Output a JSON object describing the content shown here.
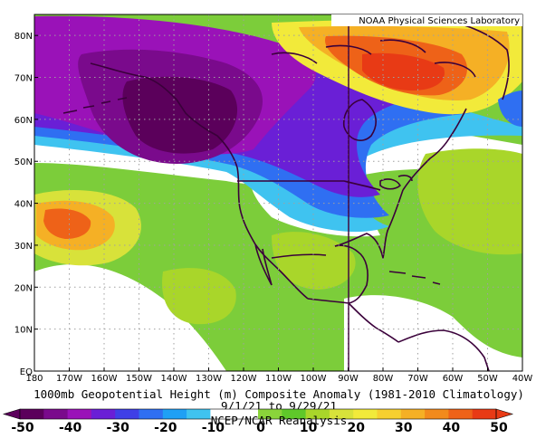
{
  "credit": "NOAA Physical Sciences Laboratory",
  "title": "1000mb Geopotential Height (m) Composite Anomaly (1981-2010 Climatology)",
  "date_range": "9/1/21 to 9/29/21",
  "source": "NCEP/NCAR Reanalysis",
  "x_ticks": [
    "180",
    "170W",
    "160W",
    "150W",
    "140W",
    "130W",
    "120W",
    "110W",
    "100W",
    "90W",
    "80W",
    "70W",
    "60W",
    "50W",
    "40W"
  ],
  "y_ticks": [
    "80N",
    "70N",
    "60N",
    "50N",
    "40N",
    "30N",
    "20N",
    "10N",
    "EQ"
  ],
  "colorbar": {
    "labels": [
      "-50",
      "-40",
      "-30",
      "-20",
      "-10",
      "0",
      "10",
      "20",
      "30",
      "40",
      "50"
    ],
    "colors": [
      "#5b005b",
      "#7a0a8c",
      "#9a12b8",
      "#6a1fd6",
      "#3f3fe6",
      "#2f6ff2",
      "#1fa0f5",
      "#3fc3f0",
      "#ffffff",
      "#ffffff",
      "#8ad43a",
      "#5fc82a",
      "#a9d62a",
      "#d8e23a",
      "#f2ea3a",
      "#f7d030",
      "#f5b025",
      "#f28a1c",
      "#ee6218",
      "#e83a15"
    ]
  },
  "map": {
    "lon_range": [
      -180,
      -40
    ],
    "lat_range": [
      0,
      85
    ],
    "bg_color": "#7ccd3a",
    "features": [
      {
        "name": "north-pacific-trough",
        "lon": -138,
        "lat": 58,
        "value": -55
      },
      {
        "name": "arctic-negative-band",
        "lon": -165,
        "lat": 78,
        "value": -35
      },
      {
        "name": "great-lakes-low",
        "lon": -88,
        "lat": 46,
        "value": -18
      },
      {
        "name": "labrador-high",
        "lon": -70,
        "lat": 67,
        "value": 48
      },
      {
        "name": "mid-pacific-high",
        "lon": -172,
        "lat": 35,
        "value": 32
      },
      {
        "name": "east-pacific-white",
        "lon": -152,
        "lat": 14,
        "value": 0
      },
      {
        "name": "atlantic-high",
        "lon": -52,
        "lat": 44,
        "value": 22
      }
    ]
  }
}
